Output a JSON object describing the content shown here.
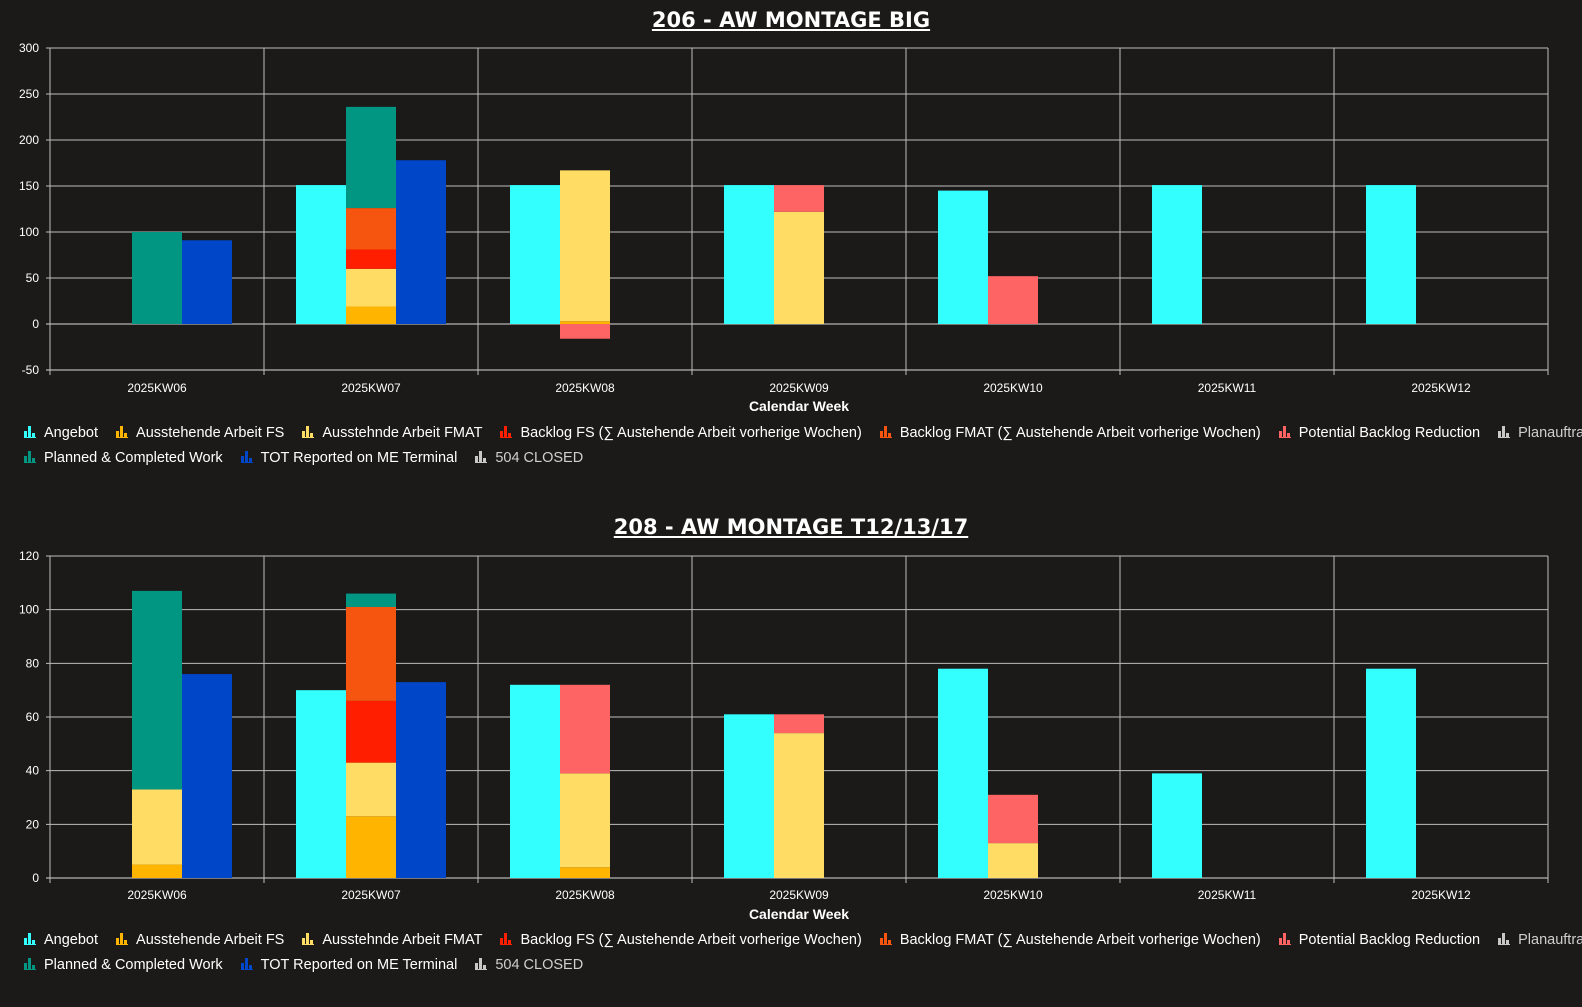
{
  "page": {
    "background": "#1b1a19"
  },
  "colors": {
    "Angebot": "#33ffff",
    "Ausstehende Arbeit FS": "#ffb400",
    "Ausstehnde Arbeit FMAT": "#ffdc64",
    "Backlog FS": "#ff1e00",
    "Backlog FMAT": "#f5550f",
    "Potential Backlog Reduction": "#ff6464",
    "Planauftraege": "#c8c8c8",
    "Planned & Completed Work": "#009682",
    "TOT Reported on ME Terminal": "#0046c8",
    "504 CLOSED": "#c8c8c8"
  },
  "legend": [
    [
      {
        "label": "Angebot",
        "icon": "bar-chart-icon",
        "color": "#33ffff",
        "muted": false
      },
      {
        "label": "Ausstehende Arbeit FS",
        "icon": "bar-chart-icon",
        "color": "#ffb400",
        "muted": false
      },
      {
        "label": "Ausstehnde Arbeit FMAT",
        "icon": "bar-chart-icon",
        "color": "#ffdc64",
        "muted": false
      },
      {
        "label": "Backlog FS (∑ Austehende Arbeit vorherige Wochen)",
        "icon": "bar-chart-icon",
        "color": "#ff1e00",
        "muted": false
      },
      {
        "label": "Backlog FMAT (∑ Austehende Arbeit vorherige Wochen)",
        "icon": "bar-chart-icon",
        "color": "#f5550f",
        "muted": false
      },
      {
        "label": "Potential Backlog Reduction",
        "icon": "bar-chart-icon",
        "color": "#ff6464",
        "muted": false
      },
      {
        "label": "Planauftraege",
        "icon": "bar-chart-icon",
        "color": "#c8c8c8",
        "muted": true
      }
    ],
    [
      {
        "label": "Planned & Completed Work",
        "icon": "bar-chart-icon",
        "color": "#009682",
        "muted": false
      },
      {
        "label": "TOT Reported on ME Terminal",
        "icon": "bar-chart-icon",
        "color": "#0046c8",
        "muted": false
      },
      {
        "label": "504 CLOSED",
        "icon": "bar-chart-icon",
        "color": "#c8c8c8",
        "muted": true
      }
    ]
  ],
  "chart_data": [
    {
      "type": "bar",
      "title": "206 - AW MONTAGE BIG",
      "xlabel": "Calendar Week",
      "ylabel": "",
      "ylim": [
        -50,
        300
      ],
      "yticks": [
        300,
        250,
        200,
        150,
        100,
        50,
        0,
        -50
      ],
      "grid": true,
      "legend_position": "bottom",
      "categories": [
        "2025KW06",
        "2025KW07",
        "2025KW08",
        "2025KW09",
        "2025KW10",
        "2025KW11",
        "2025KW12"
      ],
      "bars": [
        {
          "category": "2025KW06",
          "slot": 1,
          "segments": [
            {
              "series": "Planned & Completed Work",
              "from": 0,
              "to": 100
            }
          ]
        },
        {
          "category": "2025KW06",
          "slot": 2,
          "segments": [
            {
              "series": "TOT Reported on ME Terminal",
              "from": 0,
              "to": 91
            }
          ]
        },
        {
          "category": "2025KW07",
          "slot": 0,
          "segments": [
            {
              "series": "Angebot",
              "from": 0,
              "to": 151
            }
          ]
        },
        {
          "category": "2025KW07",
          "slot": 1,
          "segments": [
            {
              "series": "Ausstehende Arbeit FS",
              "from": 0,
              "to": 19
            },
            {
              "series": "Ausstehnde Arbeit FMAT",
              "from": 19,
              "to": 60
            },
            {
              "series": "Backlog FS (∑ Austehende Arbeit vorherige Wochen)",
              "from": 60,
              "to": 81
            },
            {
              "series": "Backlog FMAT (∑ Austehende Arbeit vorherige Wochen)",
              "from": 81,
              "to": 126
            },
            {
              "series": "Planned & Completed Work",
              "from": 126,
              "to": 236
            }
          ]
        },
        {
          "category": "2025KW07",
          "slot": 2,
          "segments": [
            {
              "series": "TOT Reported on ME Terminal",
              "from": 0,
              "to": 178
            }
          ]
        },
        {
          "category": "2025KW08",
          "slot": 0,
          "segments": [
            {
              "series": "Angebot",
              "from": 0,
              "to": 151
            }
          ]
        },
        {
          "category": "2025KW08",
          "slot": 1,
          "segments": [
            {
              "series": "Ausstehende Arbeit FS",
              "from": 0,
              "to": 3
            },
            {
              "series": "Ausstehnde Arbeit FMAT",
              "from": 3,
              "to": 167
            },
            {
              "series": "Potential Backlog Reduction",
              "from": -16,
              "to": 0
            }
          ]
        },
        {
          "category": "2025KW09",
          "slot": 0,
          "segments": [
            {
              "series": "Angebot",
              "from": 0,
              "to": 151
            }
          ]
        },
        {
          "category": "2025KW09",
          "slot": 1,
          "segments": [
            {
              "series": "Ausstehnde Arbeit FMAT",
              "from": 0,
              "to": 122
            },
            {
              "series": "Potential Backlog Reduction",
              "from": 122,
              "to": 151
            }
          ]
        },
        {
          "category": "2025KW10",
          "slot": 0,
          "segments": [
            {
              "series": "Angebot",
              "from": 0,
              "to": 145
            }
          ]
        },
        {
          "category": "2025KW10",
          "slot": 1,
          "segments": [
            {
              "series": "Potential Backlog Reduction",
              "from": 0,
              "to": 52
            }
          ]
        },
        {
          "category": "2025KW11",
          "slot": 0,
          "segments": [
            {
              "series": "Angebot",
              "from": 0,
              "to": 151
            }
          ]
        },
        {
          "category": "2025KW12",
          "slot": 0,
          "segments": [
            {
              "series": "Angebot",
              "from": 0,
              "to": 151
            }
          ]
        }
      ]
    },
    {
      "type": "bar",
      "title": "208 - AW MONTAGE T12/13/17",
      "xlabel": "Calendar Week",
      "ylabel": "",
      "ylim": [
        0,
        120
      ],
      "yticks": [
        120,
        100,
        80,
        60,
        40,
        20,
        0
      ],
      "grid": true,
      "legend_position": "bottom",
      "categories": [
        "2025KW06",
        "2025KW07",
        "2025KW08",
        "2025KW09",
        "2025KW10",
        "2025KW11",
        "2025KW12"
      ],
      "bars": [
        {
          "category": "2025KW06",
          "slot": 1,
          "segments": [
            {
              "series": "Ausstehende Arbeit FS",
              "from": 0,
              "to": 5
            },
            {
              "series": "Ausstehnde Arbeit FMAT",
              "from": 5,
              "to": 33
            },
            {
              "series": "Planned & Completed Work",
              "from": 33,
              "to": 107
            }
          ]
        },
        {
          "category": "2025KW06",
          "slot": 2,
          "segments": [
            {
              "series": "TOT Reported on ME Terminal",
              "from": 0,
              "to": 76
            }
          ]
        },
        {
          "category": "2025KW07",
          "slot": 0,
          "segments": [
            {
              "series": "Angebot",
              "from": 0,
              "to": 70
            }
          ]
        },
        {
          "category": "2025KW07",
          "slot": 1,
          "segments": [
            {
              "series": "Ausstehende Arbeit FS",
              "from": 0,
              "to": 23
            },
            {
              "series": "Ausstehnde Arbeit FMAT",
              "from": 23,
              "to": 43
            },
            {
              "series": "Backlog FS (∑ Austehende Arbeit vorherige Wochen)",
              "from": 43,
              "to": 66
            },
            {
              "series": "Backlog FMAT (∑ Austehende Arbeit vorherige Wochen)",
              "from": 66,
              "to": 101
            },
            {
              "series": "Planned & Completed Work",
              "from": 101,
              "to": 106
            }
          ]
        },
        {
          "category": "2025KW07",
          "slot": 2,
          "segments": [
            {
              "series": "TOT Reported on ME Terminal",
              "from": 0,
              "to": 73
            }
          ]
        },
        {
          "category": "2025KW08",
          "slot": 0,
          "segments": [
            {
              "series": "Angebot",
              "from": 0,
              "to": 72
            }
          ]
        },
        {
          "category": "2025KW08",
          "slot": 1,
          "segments": [
            {
              "series": "Ausstehende Arbeit FS",
              "from": 0,
              "to": 4
            },
            {
              "series": "Ausstehnde Arbeit FMAT",
              "from": 4,
              "to": 39
            },
            {
              "series": "Potential Backlog Reduction",
              "from": 39,
              "to": 72
            }
          ]
        },
        {
          "category": "2025KW09",
          "slot": 0,
          "segments": [
            {
              "series": "Angebot",
              "from": 0,
              "to": 61
            }
          ]
        },
        {
          "category": "2025KW09",
          "slot": 1,
          "segments": [
            {
              "series": "Ausstehnde Arbeit FMAT",
              "from": 0,
              "to": 54
            },
            {
              "series": "Potential Backlog Reduction",
              "from": 54,
              "to": 61
            }
          ]
        },
        {
          "category": "2025KW10",
          "slot": 0,
          "segments": [
            {
              "series": "Angebot",
              "from": 0,
              "to": 78
            }
          ]
        },
        {
          "category": "2025KW10",
          "slot": 1,
          "segments": [
            {
              "series": "Ausstehnde Arbeit FMAT",
              "from": 0,
              "to": 13
            },
            {
              "series": "Potential Backlog Reduction",
              "from": 13,
              "to": 31
            }
          ]
        },
        {
          "category": "2025KW11",
          "slot": 0,
          "segments": [
            {
              "series": "Angebot",
              "from": 0,
              "to": 39
            }
          ]
        },
        {
          "category": "2025KW12",
          "slot": 0,
          "segments": [
            {
              "series": "Angebot",
              "from": 0,
              "to": 78
            }
          ]
        }
      ]
    }
  ]
}
